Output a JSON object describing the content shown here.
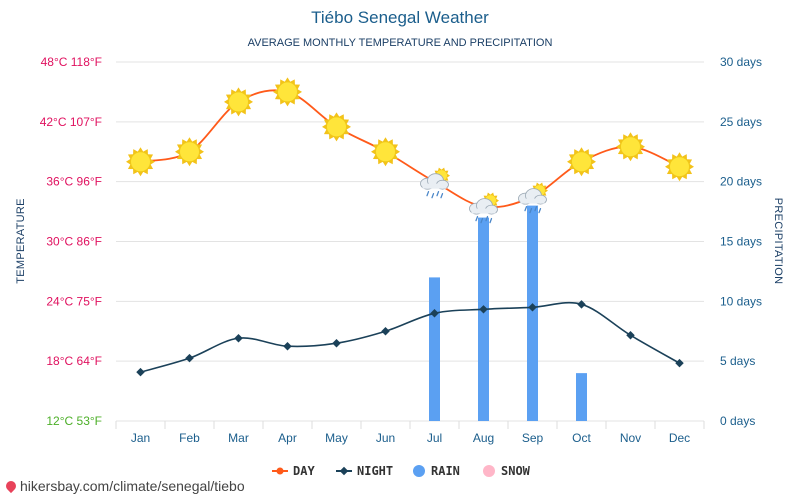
{
  "title": "Tiébo Senegal Weather",
  "subtitle": "AVERAGE MONTHLY TEMPERATURE AND PRECIPITATION",
  "footer_url": "hikersbay.com/climate/senegal/tiebo",
  "colors": {
    "day": "#ff5a1a",
    "night": "#1b4159",
    "rain": "#5ba0f2",
    "snow": "#ffb6c8",
    "temp_label": "#e0115f",
    "temp_label_low": "#4caf28",
    "axis_text": "#1b5e8c"
  },
  "chart_data": {
    "type": "line",
    "categories": [
      "Jan",
      "Feb",
      "Mar",
      "Apr",
      "May",
      "Jun",
      "Jul",
      "Aug",
      "Sep",
      "Oct",
      "Nov",
      "Dec"
    ],
    "series": [
      {
        "name": "DAY",
        "values": [
          38,
          39,
          44,
          45,
          41.5,
          39,
          36,
          33.5,
          34.5,
          38,
          39.5,
          37.5
        ]
      },
      {
        "name": "NIGHT",
        "values": [
          16.9,
          18.3,
          20.3,
          19.5,
          19.8,
          21.0,
          22.8,
          23.2,
          23.4,
          23.7,
          20.6,
          17.8
        ]
      },
      {
        "name": "RAIN",
        "values": [
          0,
          0,
          0,
          0,
          0,
          0,
          12,
          17,
          18,
          4,
          0,
          0
        ]
      },
      {
        "name": "SNOW",
        "values": [
          0,
          0,
          0,
          0,
          0,
          0,
          0,
          0,
          0,
          0,
          0,
          0
        ]
      }
    ],
    "weather_icons": [
      "sun",
      "sun",
      "sun",
      "sun",
      "sun",
      "sun",
      "sun-cloud-rain",
      "sun-cloud-rain",
      "sun-cloud-rain",
      "sun",
      "sun",
      "sun"
    ],
    "ylabel": "TEMPERATURE",
    "ylabel_right": "PRECIPITATION",
    "ylim": [
      12,
      48
    ],
    "ylim_right": [
      0,
      30
    ],
    "yticks_left": [
      "12°C 53°F",
      "18°C 64°F",
      "24°C 75°F",
      "30°C 86°F",
      "36°C 96°F",
      "42°C 107°F",
      "48°C 118°F"
    ],
    "yticks_right": [
      "0 days",
      "5 days",
      "10 days",
      "15 days",
      "20 days",
      "25 days",
      "30 days"
    ],
    "legend": [
      "DAY",
      "NIGHT",
      "RAIN",
      "SNOW"
    ],
    "legend_position": "bottom-center",
    "grid": true
  }
}
